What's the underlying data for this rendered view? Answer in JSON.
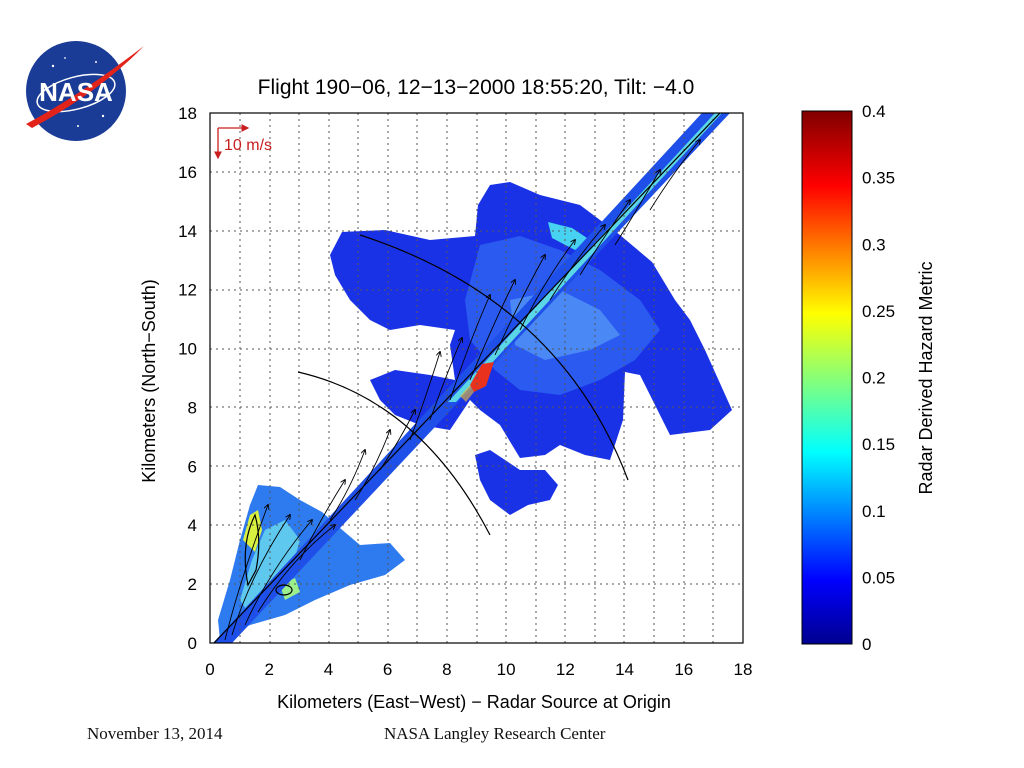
{
  "logo": {
    "text": "NASA",
    "icon": "nasa-meatball-logo"
  },
  "chart_data": {
    "type": "heatmap",
    "title": "Flight 190−06, 12−13−2000 18:55:20, Tilt: −4.0",
    "xlabel": "Kilometers (East−West)  −  Radar Source at Origin",
    "ylabel": "Kilometers (North−South)",
    "xlim": [
      0,
      18
    ],
    "ylim": [
      0,
      18
    ],
    "xticks": [
      0,
      2,
      4,
      6,
      8,
      10,
      12,
      14,
      16,
      18
    ],
    "yticks": [
      0,
      2,
      4,
      6,
      8,
      10,
      12,
      14,
      16,
      18
    ],
    "grid": true,
    "annotation": "10 m/s",
    "colorbar": {
      "label": "Radar Derived Hazard Metric",
      "range": [
        0,
        0.4
      ],
      "ticks": [
        "0.4",
        "0.35",
        "0.3",
        "0.25",
        "0.2",
        "0.15",
        "0.1",
        "0.05",
        "0"
      ],
      "colormap": [
        "#00008f",
        "#0000ff",
        "#0080ff",
        "#00ffff",
        "#80ff80",
        "#ffff00",
        "#ff8000",
        "#ff0000",
        "#800000"
      ]
    },
    "flight_path": {
      "from": [
        0,
        0
      ],
      "to": [
        17.2,
        18
      ]
    },
    "peak": {
      "x": 9.1,
      "y": 9.2,
      "value": 0.37
    }
  },
  "footer": {
    "date": "November 13, 2014",
    "center": "NASA Langley Research Center"
  }
}
